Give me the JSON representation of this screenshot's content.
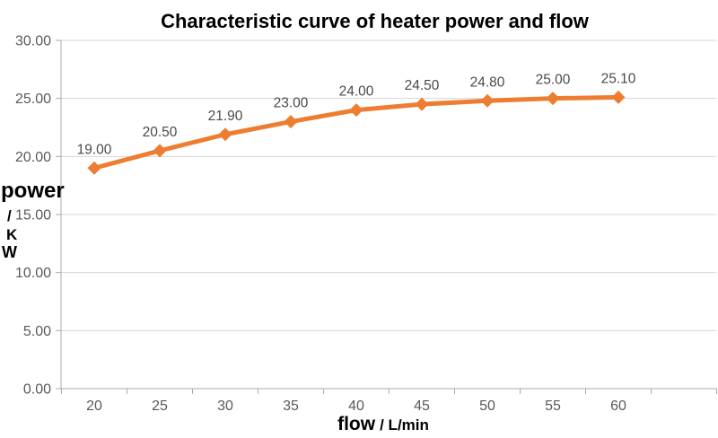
{
  "chart_data": {
    "type": "line",
    "title": "Characteristic curve of heater power and flow",
    "x": [
      20,
      25,
      30,
      35,
      40,
      45,
      50,
      55,
      60
    ],
    "x_tick_labels": [
      "20",
      "25",
      "30",
      "35",
      "40",
      "45",
      "50",
      "55",
      "60"
    ],
    "values": [
      19.0,
      20.5,
      21.9,
      23.0,
      24.0,
      24.5,
      24.8,
      25.0,
      25.1
    ],
    "data_labels": [
      "19.00",
      "20.50",
      "21.90",
      "23.00",
      "24.00",
      "24.50",
      "24.80",
      "25.00",
      "25.10"
    ],
    "xlabel": "flow / L/min",
    "ylabel": "power / KW",
    "ylim": [
      0,
      30
    ],
    "y_tick_step": 5,
    "y_tick_labels": [
      "30.00",
      "25.00",
      "20.00",
      "15.00",
      "10.00",
      "5.00",
      "0.00"
    ],
    "grid": "horizontal",
    "legend": "none",
    "marker": "diamond"
  },
  "axis_titles": {
    "y_lines": [
      "power",
      "/",
      "K",
      "W"
    ],
    "x_main": "flow",
    "x_unit": "/ L/min"
  },
  "colors": {
    "series": "#ED7D31",
    "gridline": "#D7D7D7",
    "axis": "#ABABAB",
    "tick_label": "#595959",
    "data_label": "#4A4A4A",
    "title": "#000000",
    "background": "#FFFFFF"
  }
}
